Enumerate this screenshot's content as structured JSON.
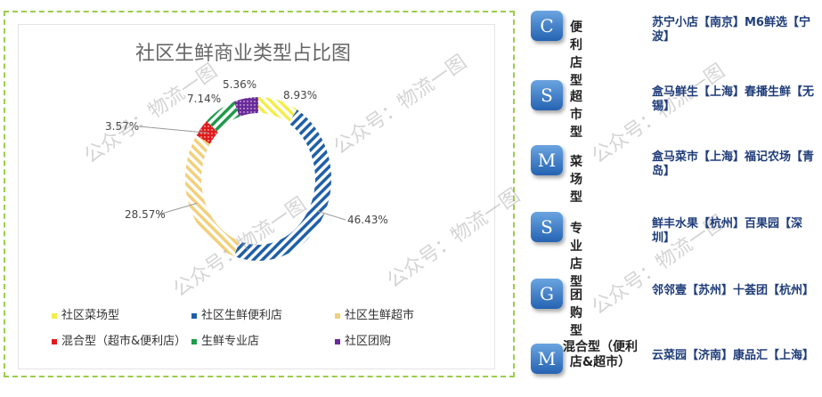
{
  "chart_data": {
    "type": "pie",
    "subtype": "donut",
    "title": "社区生鲜商业类型占比图",
    "categories": [
      "社区菜场型",
      "社区生鲜便利店",
      "社区生鲜超市",
      "混合型（超市&便利店）",
      "生鲜专业店",
      "社区团购"
    ],
    "values": [
      8.93,
      46.43,
      28.57,
      3.57,
      7.14,
      5.36
    ],
    "labels": [
      "8.93%",
      "46.43%",
      "28.57%",
      "3.57%",
      "7.14%",
      "5.36%"
    ],
    "colors": [
      "#f2ee4a",
      "#1f5fa8",
      "#f2cf7a",
      "#e01b1b",
      "#1e9a4a",
      "#6a2a9a"
    ],
    "legend_placement": "bottom"
  },
  "watermark": "公众号：物流一图",
  "types": [
    {
      "letter": "C",
      "name": "便利店型",
      "stores": "苏宁小店【南京】M6鲜选【宁波】"
    },
    {
      "letter": "S",
      "name": "超市型",
      "stores": "盒马鲜生【上海】春播生鲜【无锡】"
    },
    {
      "letter": "M",
      "name": "菜场型",
      "stores": "盒马菜市【上海】福记农场【青岛】"
    },
    {
      "letter": "S",
      "name": "专业店型",
      "stores": "鲜丰水果【杭州】百果园【深圳】"
    },
    {
      "letter": "G",
      "name": "团购型",
      "stores": "邻邻壹【苏州】十荟团【杭州】"
    },
    {
      "letter": "M",
      "name": "混合型（便利店&超市）",
      "stores": "云菜园【济南】康品汇【上海】"
    }
  ]
}
